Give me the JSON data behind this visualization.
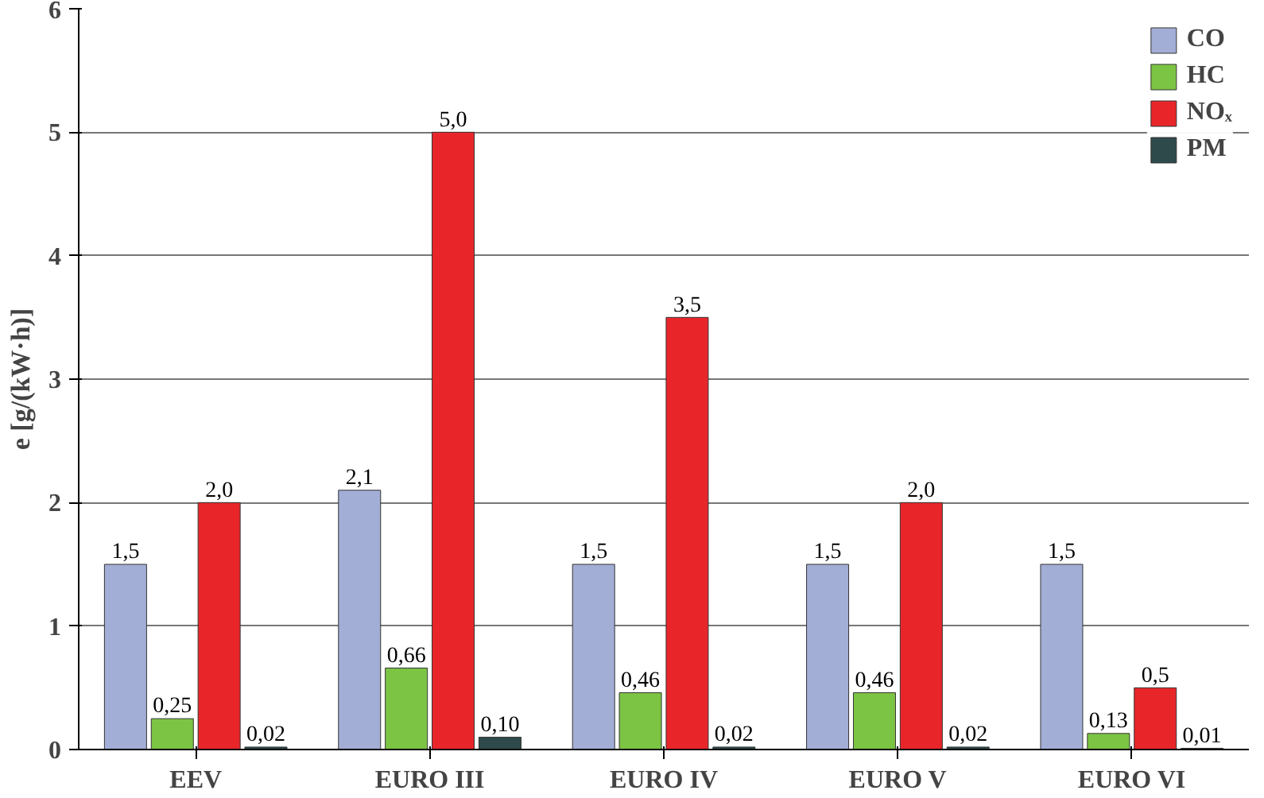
{
  "chart_data": {
    "type": "bar",
    "ylabel": "e [g/(kW·h)]",
    "categories": [
      "EEV",
      "EURO III",
      "EURO IV",
      "EURO V",
      "EURO VI"
    ],
    "series": [
      {
        "name": "CO",
        "color": "#a3aed6",
        "values": [
          1.5,
          2.1,
          1.5,
          1.5,
          1.5
        ],
        "value_labels": [
          "1,5",
          "2,1",
          "1,5",
          "1,5",
          "1,5"
        ]
      },
      {
        "name": "HC",
        "color": "#7cc444",
        "values": [
          0.25,
          0.66,
          0.46,
          0.46,
          0.13
        ],
        "value_labels": [
          "0,25",
          "0,66",
          "0,46",
          "0,46",
          "0,13"
        ]
      },
      {
        "name": "NOₓ",
        "color": "#e8262a",
        "values": [
          2.0,
          5.0,
          3.5,
          2.0,
          0.5
        ],
        "value_labels": [
          "2,0",
          "5,0",
          "3,5",
          "2,0",
          "0,5"
        ]
      },
      {
        "name": "PM",
        "color": "#2e4a4a",
        "values": [
          0.02,
          0.1,
          0.02,
          0.02,
          0.01
        ],
        "value_labels": [
          "0,02",
          "0,10",
          "0,02",
          "0,02",
          "0,01"
        ]
      }
    ],
    "ylim": [
      0,
      6
    ],
    "yticks": [
      0,
      1,
      2,
      3,
      4,
      5,
      6
    ],
    "grid": "y",
    "legend": "top right"
  }
}
